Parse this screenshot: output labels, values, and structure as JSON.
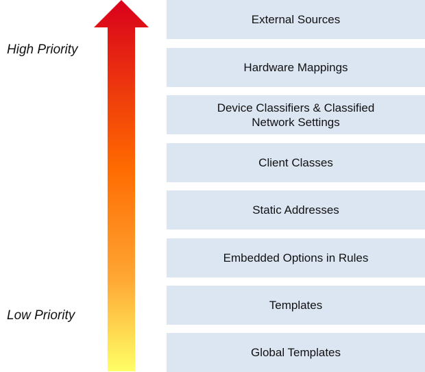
{
  "labels": {
    "high": "High Priority",
    "low": "Low Priority"
  },
  "layers": [
    "External Sources",
    "Hardware Mappings",
    "Device Classifiers & Classified Network Settings",
    "Client Classes",
    "Static Addresses",
    "Embedded Options in Rules",
    "Templates",
    "Global Templates"
  ]
}
